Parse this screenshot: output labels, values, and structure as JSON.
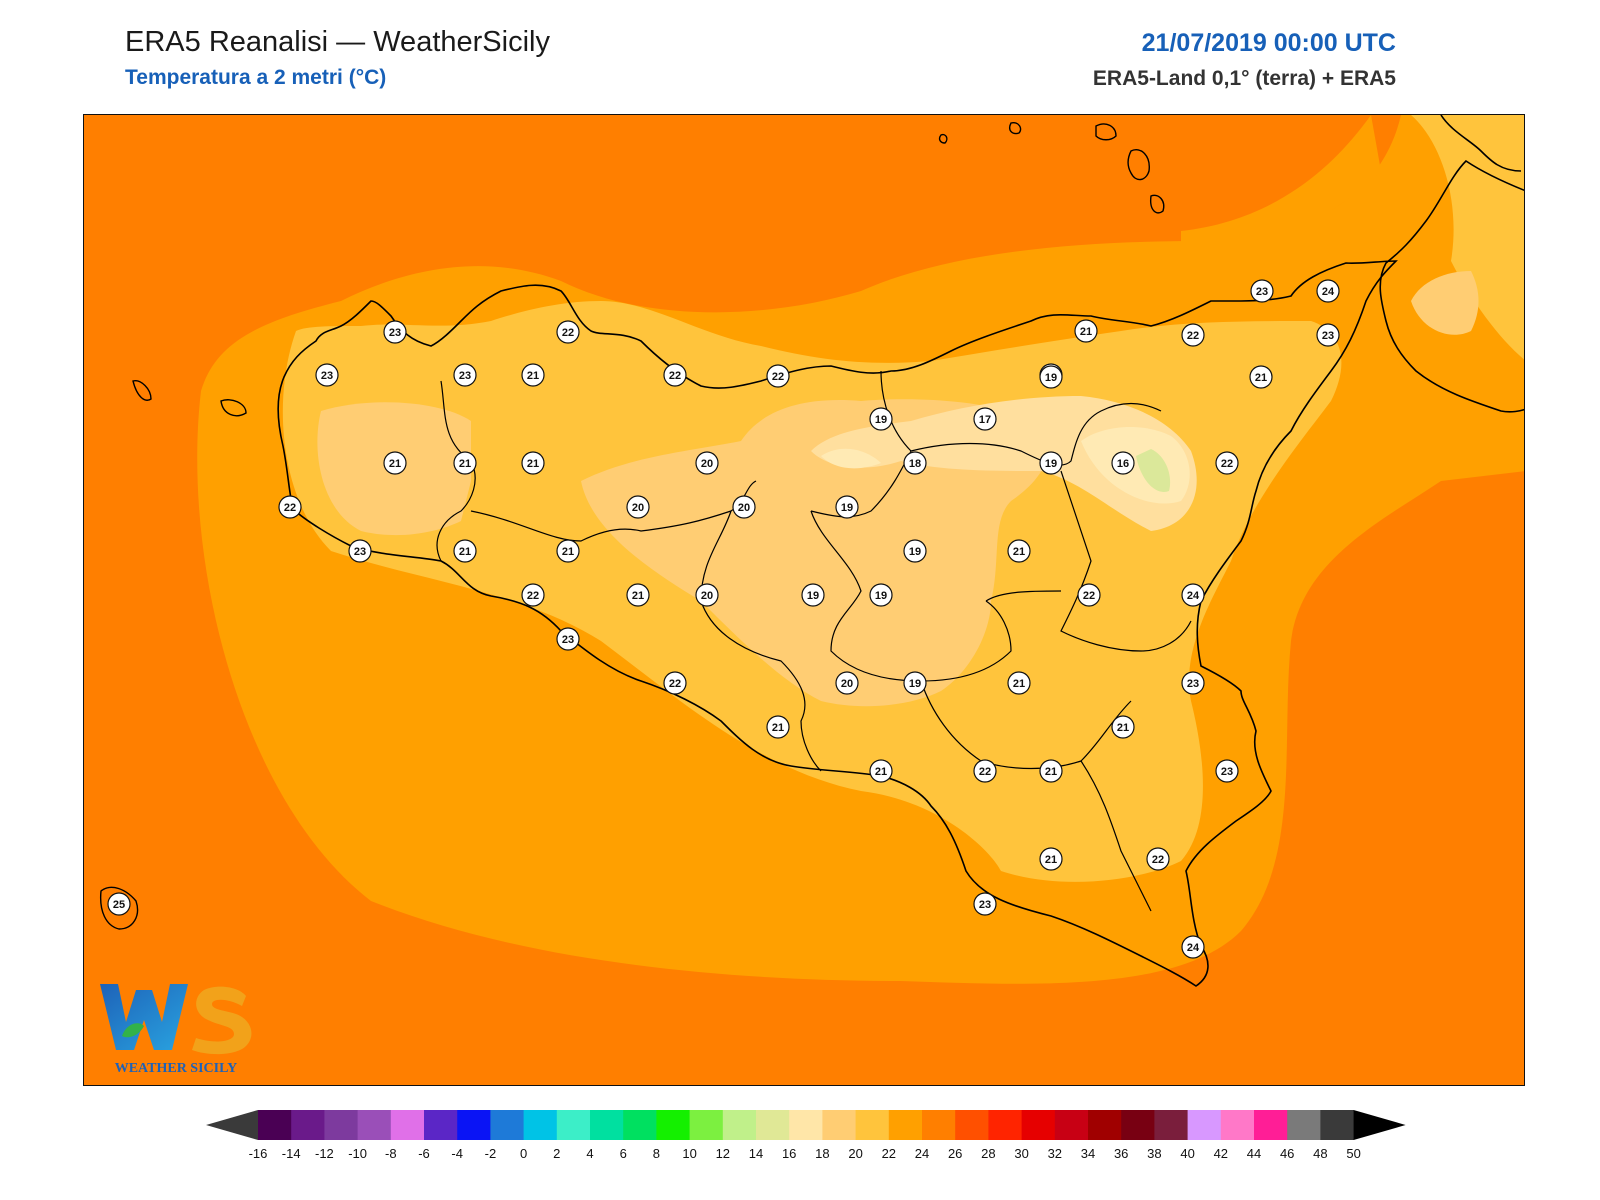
{
  "header": {
    "title": "ERA5 Reanalisi — WeatherSicily",
    "subtitle": "Temperatura a 2 metri (°C)",
    "datetime": "21/07/2019 00:00 UTC",
    "source": "ERA5-Land 0,1° (terra) + ERA5"
  },
  "logo": {
    "text": "WEATHER SICILY",
    "monogram": "WS"
  },
  "colors": {
    "field_sea_26": "#ff7f00",
    "field_24": "#ffa000",
    "field_22": "#ffc43c",
    "field_20": "#ffcd73",
    "field_18": "#ffdf9e",
    "field_16": "#ffeab4",
    "field_14": "#dbe89a",
    "coastline": "#000000",
    "title_blue": "#1760b8"
  },
  "stations": [
    {
      "v": "23"
    },
    {
      "v": "22"
    },
    {
      "v": "21"
    },
    {
      "v": "23"
    },
    {
      "v": "24"
    },
    {
      "v": "23"
    },
    {
      "v": "23"
    },
    {
      "v": "21"
    },
    {
      "v": "22"
    },
    {
      "v": "22"
    },
    {
      "v": "22"
    },
    {
      "v": "19"
    },
    {
      "v": "21"
    },
    {
      "v": "23"
    },
    {
      "v": "21"
    },
    {
      "v": "19"
    },
    {
      "v": "17"
    },
    {
      "v": "21"
    },
    {
      "v": "21"
    },
    {
      "v": "21"
    },
    {
      "v": "20"
    },
    {
      "v": "18"
    },
    {
      "v": "19"
    },
    {
      "v": "16"
    },
    {
      "v": "22"
    },
    {
      "v": "22"
    },
    {
      "v": "20"
    },
    {
      "v": "20"
    },
    {
      "v": "19"
    },
    {
      "v": "23"
    },
    {
      "v": "21"
    },
    {
      "v": "21"
    },
    {
      "v": "19"
    },
    {
      "v": "21"
    },
    {
      "v": "22"
    },
    {
      "v": "21"
    },
    {
      "v": "20"
    },
    {
      "v": "19"
    },
    {
      "v": "19"
    },
    {
      "v": "22"
    },
    {
      "v": "24"
    },
    {
      "v": "23"
    },
    {
      "v": "22"
    },
    {
      "v": "20"
    },
    {
      "v": "19"
    },
    {
      "v": "21"
    },
    {
      "v": "23"
    },
    {
      "v": "21"
    },
    {
      "v": "21"
    },
    {
      "v": "21"
    },
    {
      "v": "22"
    },
    {
      "v": "21"
    },
    {
      "v": "23"
    },
    {
      "v": "21"
    },
    {
      "v": "22"
    },
    {
      "v": "25"
    },
    {
      "v": "23"
    },
    {
      "v": "24"
    }
  ],
  "colorbar": {
    "unit": "°C",
    "labels": [
      "-16",
      "-14",
      "-12",
      "-10",
      "-8",
      "-6",
      "-4",
      "-2",
      "0",
      "2",
      "4",
      "6",
      "8",
      "10",
      "12",
      "14",
      "16",
      "18",
      "20",
      "22",
      "24",
      "26",
      "28",
      "30",
      "32",
      "34",
      "36",
      "38",
      "40",
      "42",
      "44",
      "46",
      "48",
      "50"
    ],
    "colors": [
      "#4a0054",
      "#6a1a8a",
      "#7d3a9e",
      "#9a4fb8",
      "#e070e8",
      "#5b26c6",
      "#0a14f5",
      "#1e7ad8",
      "#00c3e6",
      "#3ceec8",
      "#00e0a0",
      "#00e060",
      "#14f000",
      "#7cf040",
      "#c0f08a",
      "#e0e896",
      "#ffe6a8",
      "#ffcd73",
      "#ffc43c",
      "#ffa000",
      "#ff7f00",
      "#ff5000",
      "#ff2400",
      "#e60000",
      "#c80014",
      "#a00000",
      "#780012",
      "#7a1e3c",
      "#d898ff",
      "#ff78c8",
      "#ff1e96",
      "#7a7a7a",
      "#3a3a3a"
    ],
    "min_extend_color": "#3a3a3a",
    "max_extend_color": "#000000"
  }
}
